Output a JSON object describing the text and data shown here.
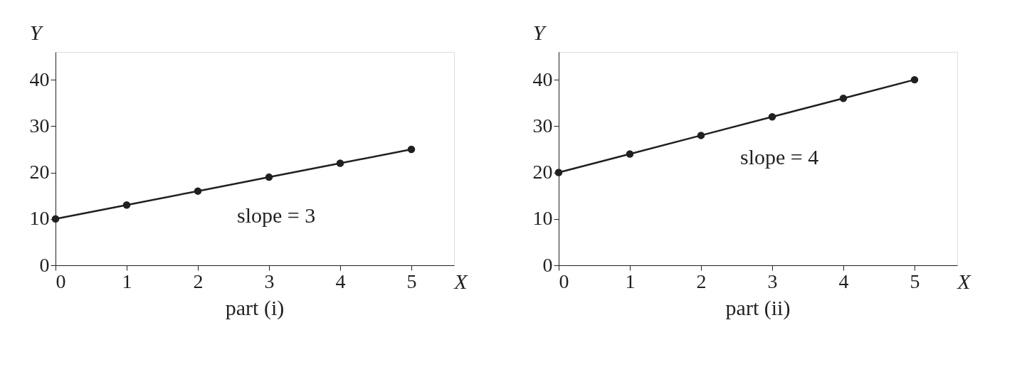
{
  "chart_data": [
    {
      "type": "line",
      "title": "part (i)",
      "xlabel": "X",
      "ylabel": "Y",
      "x": [
        0,
        1,
        2,
        3,
        4,
        5
      ],
      "xlim": [
        0,
        5.6
      ],
      "xticks": [
        0,
        1,
        2,
        3,
        4,
        5
      ],
      "ylim": [
        0,
        46
      ],
      "yticks": [
        0,
        10,
        20,
        30,
        40
      ],
      "grid": false,
      "marker": "circle",
      "line_style": "solid",
      "series": [
        {
          "color": "#231f20",
          "values": [
            10,
            13,
            16,
            19,
            22,
            25
          ]
        }
      ],
      "annotations": [
        "slope = 3"
      ]
    },
    {
      "type": "line",
      "title": "part (ii)",
      "xlabel": "X",
      "ylabel": "Y",
      "x": [
        0,
        1,
        2,
        3,
        4,
        5
      ],
      "xlim": [
        0,
        5.6
      ],
      "xticks": [
        0,
        1,
        2,
        3,
        4,
        5
      ],
      "ylim": [
        0,
        46
      ],
      "yticks": [
        0,
        10,
        20,
        30,
        40
      ],
      "grid": false,
      "marker": "circle",
      "line_style": "solid",
      "series": [
        {
          "color": "#231f20",
          "values": [
            20,
            24,
            28,
            32,
            36,
            40
          ]
        }
      ],
      "annotations": [
        "slope = 4"
      ]
    }
  ]
}
